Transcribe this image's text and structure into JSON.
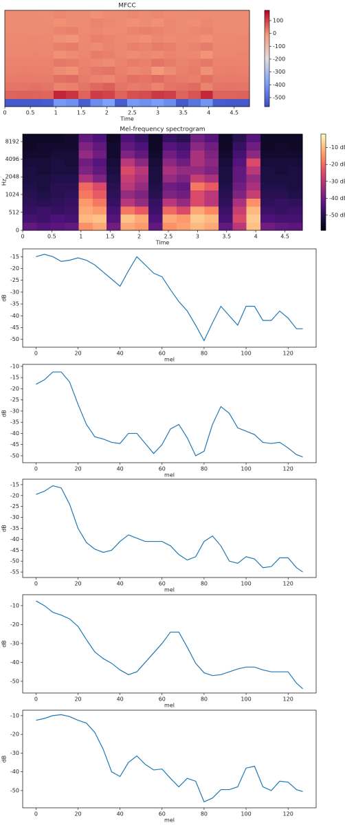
{
  "chart_data": [
    {
      "type": "heatmap",
      "title": "MFCC",
      "xlabel": "Time",
      "xlim": [
        0,
        4.8
      ],
      "xticks": [
        0,
        0.5,
        1,
        1.5,
        2,
        2.5,
        3,
        3.5,
        4,
        4.5
      ],
      "colormap": "coolwarm",
      "clim": [
        -570,
        180
      ],
      "cticks": [
        100,
        0,
        -100,
        -200,
        -300,
        -400,
        -500
      ],
      "z": [
        [
          -540,
          -540,
          -540,
          -535,
          -400,
          -420,
          -530,
          -430,
          -380,
          -535,
          -400,
          -420,
          -390,
          -430,
          -540,
          -480,
          -410,
          -535,
          -540,
          -540
        ],
        [
          60,
          62,
          60,
          58,
          140,
          120,
          60,
          110,
          100,
          60,
          85,
          90,
          115,
          105,
          60,
          80,
          135,
          60,
          60,
          62
        ],
        [
          40,
          40,
          42,
          40,
          20,
          25,
          40,
          55,
          65,
          40,
          30,
          35,
          20,
          40,
          42,
          50,
          20,
          40,
          40,
          40
        ],
        [
          30,
          32,
          30,
          30,
          45,
          50,
          30,
          20,
          15,
          30,
          45,
          40,
          50,
          35,
          30,
          25,
          45,
          30,
          32,
          30
        ],
        [
          25,
          25,
          26,
          24,
          10,
          5,
          25,
          35,
          40,
          25,
          15,
          20,
          -5,
          10,
          25,
          30,
          5,
          25,
          25,
          26
        ],
        [
          20,
          22,
          20,
          21,
          35,
          30,
          20,
          15,
          10,
          20,
          30,
          25,
          40,
          30,
          20,
          25,
          35,
          20,
          22,
          20
        ],
        [
          18,
          18,
          19,
          18,
          5,
          10,
          18,
          30,
          25,
          18,
          10,
          15,
          10,
          20,
          18,
          15,
          0,
          18,
          18,
          19
        ],
        [
          15,
          16,
          15,
          15,
          25,
          30,
          15,
          10,
          20,
          15,
          25,
          20,
          30,
          25,
          15,
          20,
          30,
          15,
          16,
          15
        ],
        [
          14,
          14,
          15,
          14,
          5,
          0,
          14,
          25,
          20,
          14,
          10,
          5,
          15,
          10,
          14,
          12,
          5,
          14,
          14,
          15
        ],
        [
          12,
          12,
          13,
          12,
          20,
          25,
          12,
          15,
          10,
          12,
          20,
          25,
          20,
          15,
          12,
          15,
          20,
          12,
          12,
          13
        ],
        [
          10,
          11,
          10,
          10,
          5,
          10,
          10,
          20,
          15,
          10,
          5,
          10,
          5,
          15,
          10,
          8,
          15,
          10,
          11,
          10
        ],
        [
          10,
          10,
          10,
          9,
          15,
          10,
          10,
          5,
          10,
          10,
          15,
          10,
          15,
          10,
          10,
          12,
          10,
          10,
          10,
          10
        ]
      ]
    },
    {
      "type": "heatmap",
      "title": "Mel-frequency spectrogram",
      "xlabel": "Time",
      "ylabel": "Hz",
      "xlim": [
        0,
        4.8
      ],
      "xticks": [
        0,
        0.5,
        1,
        1.5,
        2,
        2.5,
        3,
        3.5,
        4,
        4.5
      ],
      "yscale": "symlog",
      "ylim": [
        0,
        11025
      ],
      "yticks": [
        0,
        512,
        1024,
        2048,
        4096,
        8192
      ],
      "colormap": "magma",
      "clim": [
        -59,
        -2
      ],
      "cticks": [
        {
          "value": -10,
          "label": "-10 dB"
        },
        {
          "value": -20,
          "label": "-20 dB"
        },
        {
          "value": -30,
          "label": "-30 dB"
        },
        {
          "value": -40,
          "label": "-40 dB"
        },
        {
          "value": -50,
          "label": "-50 dB"
        }
      ],
      "z": [
        [
          -42,
          -44,
          -43,
          -42,
          -15,
          -12,
          -40,
          -12,
          -14,
          -42,
          -15,
          -13,
          -10,
          -12,
          -42,
          -30,
          -9,
          -40,
          -42,
          -43
        ],
        [
          -46,
          -47,
          -45,
          -46,
          -10,
          -9,
          -44,
          -9,
          -12,
          -45,
          -12,
          -14,
          -8,
          -10,
          -46,
          -25,
          -8,
          -45,
          -46,
          -46
        ],
        [
          -48,
          -47,
          -48,
          -47,
          -12,
          -14,
          -46,
          -18,
          -22,
          -47,
          -20,
          -25,
          -12,
          -16,
          -47,
          -28,
          -10,
          -47,
          -48,
          -47
        ],
        [
          -49,
          -50,
          -49,
          -48,
          -14,
          -18,
          -48,
          -30,
          -35,
          -48,
          -30,
          -35,
          -25,
          -30,
          -49,
          -32,
          -15,
          -49,
          -48,
          -49
        ],
        [
          -50,
          -51,
          -50,
          -49,
          -18,
          -22,
          -49,
          -35,
          -38,
          -50,
          -38,
          -40,
          -25,
          -30,
          -50,
          -38,
          -28,
          -50,
          -50,
          -51
        ],
        [
          -51,
          -52,
          -50,
          -50,
          -20,
          -25,
          -50,
          -30,
          -35,
          -51,
          -40,
          -42,
          -18,
          -22,
          -51,
          -40,
          -32,
          -51,
          -51,
          -52
        ],
        [
          -52,
          -52,
          -51,
          -51,
          -32,
          -38,
          -51,
          -28,
          -32,
          -52,
          -35,
          -38,
          -28,
          -32,
          -52,
          -42,
          -35,
          -52,
          -52,
          -52
        ],
        [
          -52,
          -53,
          -52,
          -52,
          -38,
          -42,
          -52,
          -25,
          -30,
          -52,
          -32,
          -35,
          -35,
          -38,
          -52,
          -42,
          -30,
          -52,
          -53,
          -52
        ],
        [
          -53,
          -53,
          -52,
          -53,
          -40,
          -44,
          -53,
          -30,
          -36,
          -53,
          -36,
          -40,
          -32,
          -36,
          -53,
          -44,
          -25,
          -53,
          -53,
          -53
        ],
        [
          -54,
          -54,
          -53,
          -53,
          -35,
          -40,
          -54,
          -38,
          -42,
          -54,
          -40,
          -44,
          -32,
          -38,
          -54,
          -46,
          -36,
          -54,
          -54,
          -54
        ],
        [
          -55,
          -54,
          -54,
          -54,
          -38,
          -42,
          -54,
          -42,
          -45,
          -55,
          -44,
          -46,
          -36,
          -40,
          -55,
          -48,
          -40,
          -55,
          -54,
          -55
        ],
        [
          -55,
          -55,
          -55,
          -54,
          -42,
          -45,
          -55,
          -45,
          -48,
          -55,
          -48,
          -50,
          -40,
          -44,
          -55,
          -50,
          -44,
          -55,
          -55,
          -55
        ]
      ]
    },
    {
      "type": "line",
      "xlabel": "mel",
      "ylabel": "dB",
      "color": "#1f77b4",
      "xlim": [
        -6.35,
        133.35
      ],
      "xticks": [
        0,
        20,
        40,
        60,
        80,
        100,
        120
      ],
      "ylim": [
        -53.3,
        -11.7
      ],
      "yticks": [
        -15,
        -20,
        -25,
        -30,
        -35,
        -40,
        -45,
        -50
      ],
      "x": [
        0,
        4,
        8,
        12,
        16,
        20,
        24,
        28,
        32,
        36,
        40,
        44,
        48,
        52,
        56,
        60,
        64,
        68,
        72,
        76,
        80,
        84,
        88,
        92,
        96,
        100,
        104,
        108,
        112,
        116,
        120,
        124,
        127
      ],
      "values": [
        -15,
        -14,
        -15,
        -17,
        -16.5,
        -15.5,
        -16.5,
        -18.5,
        -21.5,
        -24.5,
        -27.5,
        -21,
        -15,
        -18.5,
        -22,
        -23.5,
        -29,
        -34,
        -38,
        -44,
        -50.5,
        -43,
        -36,
        -40,
        -44,
        -36,
        -36,
        -42,
        -42,
        -38,
        -41,
        -45.5,
        -45.5
      ]
    },
    {
      "type": "line",
      "xlabel": "mel",
      "ylabel": "dB",
      "color": "#1f77b4",
      "xlim": [
        -6.35,
        133.35
      ],
      "xticks": [
        0,
        20,
        40,
        60,
        80,
        100,
        120
      ],
      "ylim": [
        -53.1,
        -9.1
      ],
      "yticks": [
        -10,
        -15,
        -20,
        -25,
        -30,
        -35,
        -40,
        -45,
        -50
      ],
      "x": [
        0,
        4,
        8,
        12,
        16,
        20,
        24,
        28,
        32,
        36,
        40,
        44,
        48,
        52,
        56,
        60,
        64,
        68,
        72,
        76,
        80,
        84,
        88,
        92,
        96,
        100,
        104,
        108,
        112,
        116,
        120,
        124,
        127
      ],
      "values": [
        -18,
        -16,
        -12.5,
        -12.5,
        -17,
        -27,
        -36,
        -41.5,
        -42.5,
        -44,
        -44.5,
        -40,
        -40,
        -44.5,
        -49,
        -45,
        -38,
        -36,
        -42,
        -50,
        -48,
        -36,
        -28,
        -31,
        -37.5,
        -39,
        -40.5,
        -44,
        -44.5,
        -44,
        -46.5,
        -49.5,
        -50.5
      ]
    },
    {
      "type": "line",
      "xlabel": "mel",
      "ylabel": "dB",
      "color": "#1f77b4",
      "xlim": [
        -6.35,
        133.35
      ],
      "xticks": [
        0,
        20,
        40,
        60,
        80,
        100,
        120
      ],
      "ylim": [
        -57.5,
        -12.5
      ],
      "yticks": [
        -15,
        -20,
        -25,
        -30,
        -35,
        -40,
        -45,
        -50,
        -55
      ],
      "x": [
        0,
        4,
        8,
        12,
        16,
        20,
        24,
        28,
        32,
        36,
        40,
        44,
        48,
        52,
        56,
        60,
        64,
        68,
        72,
        76,
        80,
        84,
        88,
        92,
        96,
        100,
        104,
        108,
        112,
        116,
        120,
        124,
        127
      ],
      "values": [
        -19.5,
        -18,
        -15.5,
        -16.5,
        -24,
        -35,
        -41.5,
        -44.5,
        -46,
        -45,
        -41,
        -38,
        -39.5,
        -41,
        -41,
        -41,
        -43,
        -47,
        -49.5,
        -48,
        -41,
        -38.5,
        -43,
        -50,
        -51,
        -48,
        -49,
        -53,
        -52.5,
        -48.5,
        -48.5,
        -53,
        -55
      ]
    },
    {
      "type": "line",
      "xlabel": "mel",
      "ylabel": "dB",
      "color": "#1f77b4",
      "xlim": [
        -6.35,
        133.35
      ],
      "xticks": [
        0,
        20,
        40,
        60,
        80,
        100,
        120
      ],
      "ylim": [
        -56.2,
        -4.2
      ],
      "yticks": [
        -10,
        -20,
        -30,
        -40,
        -50
      ],
      "x": [
        0,
        4,
        8,
        12,
        16,
        20,
        24,
        28,
        32,
        36,
        40,
        44,
        48,
        52,
        56,
        60,
        64,
        68,
        72,
        76,
        80,
        84,
        88,
        92,
        96,
        100,
        104,
        108,
        112,
        116,
        120,
        124,
        127
      ],
      "values": [
        -7.5,
        -10,
        -13.5,
        -15,
        -17,
        -21,
        -28,
        -34.5,
        -38,
        -40.5,
        -44,
        -46.5,
        -45,
        -40,
        -35,
        -30,
        -24,
        -24,
        -32,
        -40.5,
        -45.5,
        -47,
        -46.5,
        -45,
        -43.5,
        -42.5,
        -42.5,
        -44,
        -45,
        -45,
        -45,
        -51,
        -54
      ]
    },
    {
      "type": "line",
      "xlabel": "mel",
      "ylabel": "dB",
      "color": "#1f77b4",
      "xlim": [
        -6.35,
        133.35
      ],
      "xticks": [
        0,
        20,
        40,
        60,
        80,
        100,
        120
      ],
      "ylim": [
        -59.2,
        -7.1
      ],
      "yticks": [
        -10,
        -20,
        -30,
        -40,
        -50
      ],
      "x": [
        0,
        4,
        8,
        12,
        16,
        20,
        24,
        28,
        32,
        36,
        40,
        44,
        48,
        52,
        56,
        60,
        64,
        68,
        72,
        76,
        80,
        84,
        88,
        92,
        96,
        100,
        104,
        108,
        112,
        116,
        120,
        124,
        127
      ],
      "values": [
        -12.5,
        -11.5,
        -10,
        -9.5,
        -10.5,
        -12.5,
        -14,
        -19,
        -28,
        -40,
        -42.5,
        -35,
        -31.5,
        -36,
        -39,
        -38.5,
        -43.5,
        -48,
        -43.5,
        -45,
        -56,
        -54,
        -49.5,
        -49.5,
        -48,
        -38,
        -37,
        -48,
        -50,
        -45,
        -45.5,
        -49.5,
        -50.5
      ]
    }
  ]
}
